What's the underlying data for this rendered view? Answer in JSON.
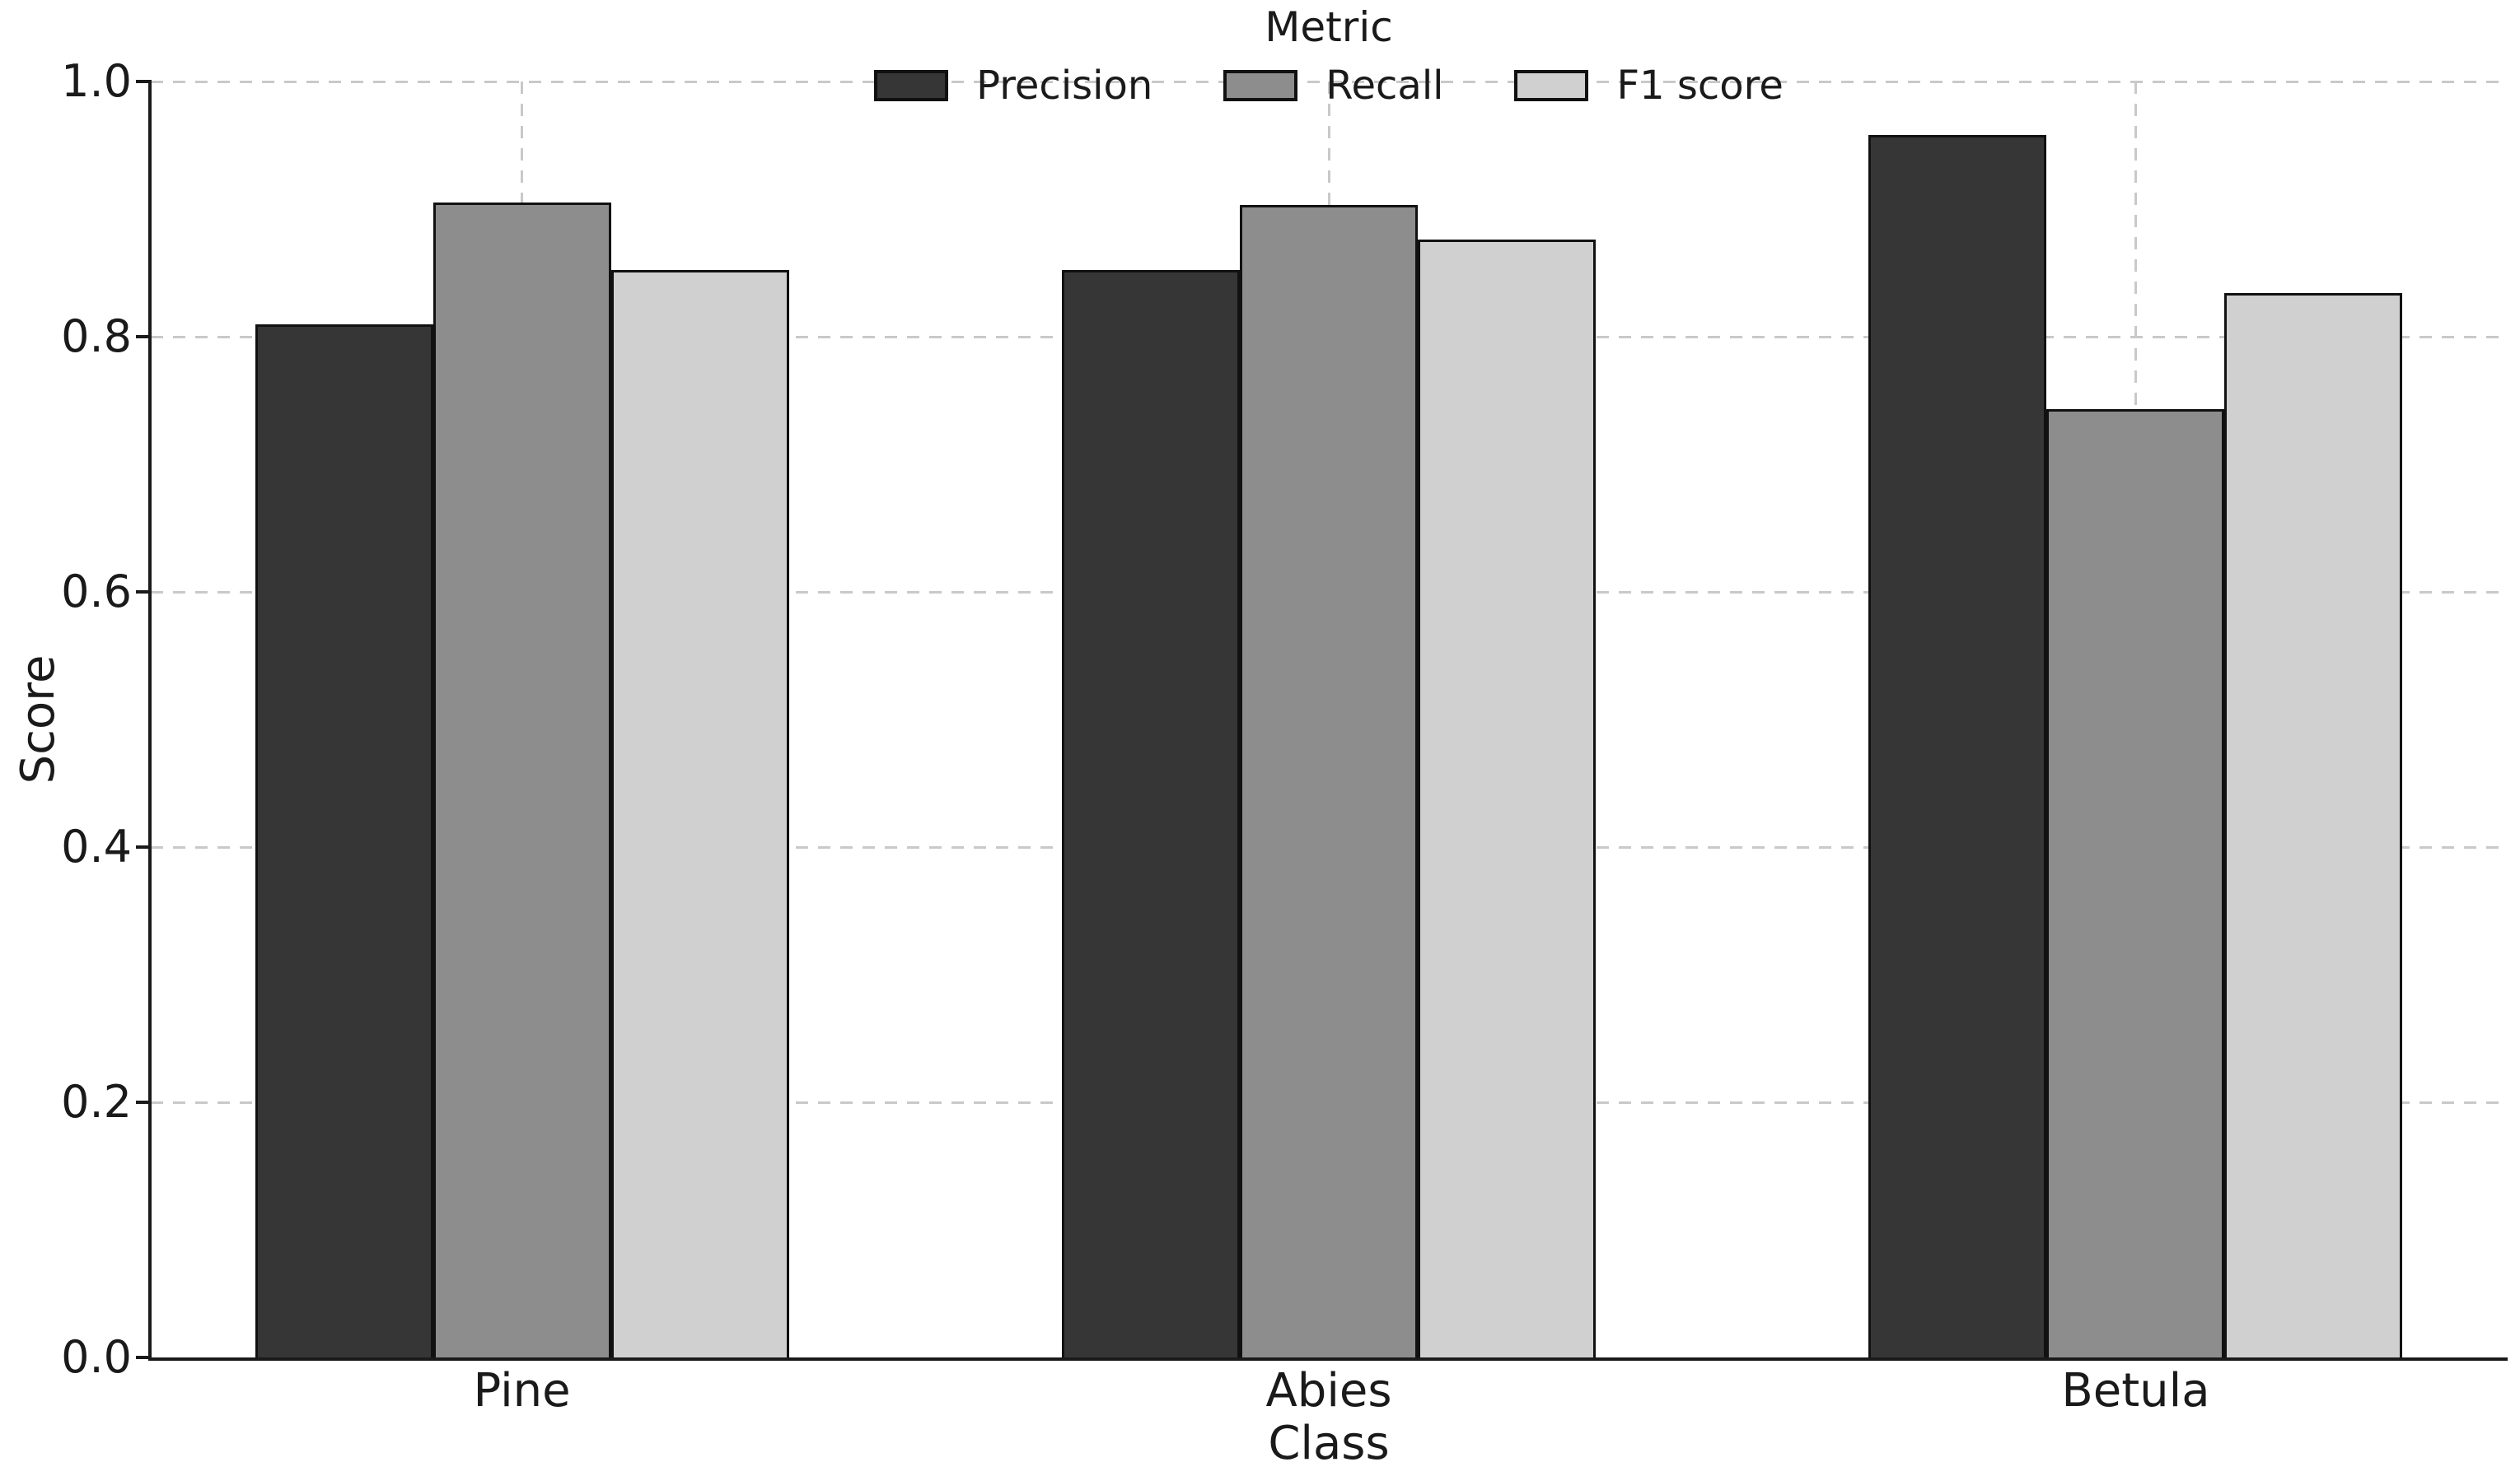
{
  "chart_data": {
    "type": "bar",
    "title": "",
    "xlabel": "Class",
    "ylabel": "Score",
    "categories": [
      "Pine",
      "Abies",
      "Betula"
    ],
    "series": [
      {
        "name": "Precision",
        "color": "#363636",
        "values": [
          0.81,
          0.852,
          0.958
        ]
      },
      {
        "name": "Recall",
        "color": "#8d8d8d",
        "values": [
          0.905,
          0.903,
          0.743
        ]
      },
      {
        "name": "F1 score",
        "color": "#d0d0d0",
        "values": [
          0.852,
          0.876,
          0.834
        ]
      }
    ],
    "legend_title": "Metric",
    "legend_position": "top-center",
    "ylim": [
      0.0,
      1.0
    ],
    "xlim": [
      -0.46,
      2.46
    ],
    "yticks": [
      "0.0",
      "0.2",
      "0.4",
      "0.6",
      "0.8",
      "1.0"
    ],
    "grid": "dashed",
    "bar_edge_color": "#111111"
  }
}
